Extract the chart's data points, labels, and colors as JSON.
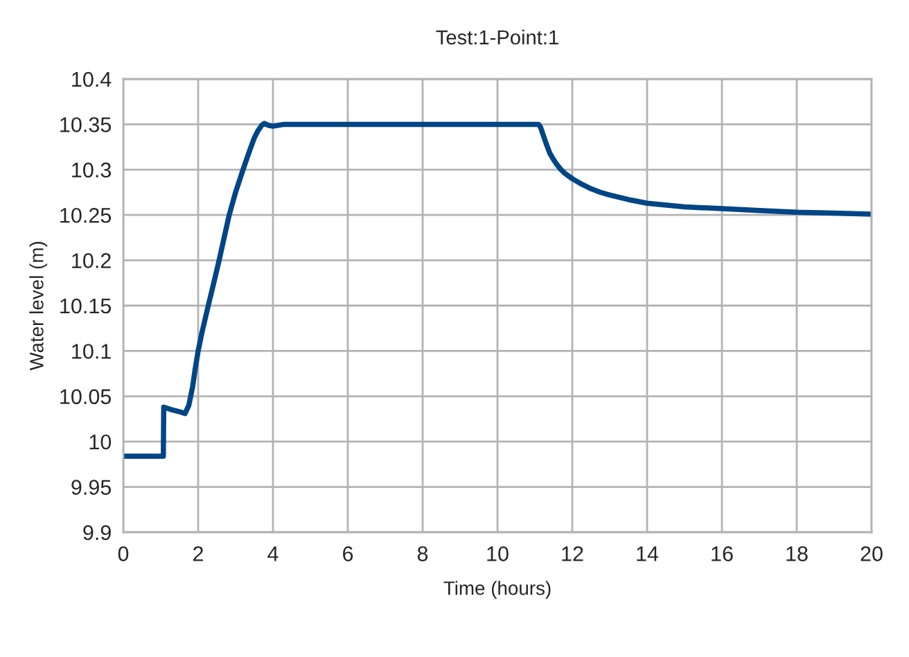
{
  "chart_data": {
    "type": "line",
    "title": "Test:1-Point:1",
    "xlabel": "Time (hours)",
    "ylabel": "Water level (m)",
    "series": [
      {
        "color": "#004586",
        "x": [
          0,
          1.07,
          1.08,
          1.15,
          1.3,
          1.5,
          1.65,
          1.75,
          1.85,
          1.92,
          2.0,
          2.1,
          2.27,
          2.4,
          2.56,
          2.7,
          2.83,
          3.0,
          3.2,
          3.35,
          3.5,
          3.6,
          3.7,
          3.77,
          3.87,
          4.0,
          4.3,
          11.1,
          11.15,
          11.2,
          11.3,
          11.4,
          11.5,
          11.6,
          11.7,
          11.8,
          12.0,
          12.25,
          12.5,
          12.75,
          13.0,
          13.5,
          14.0,
          15.0,
          16.0,
          17.0,
          18.0,
          19.0,
          20.0
        ],
        "values": [
          9.984,
          9.984,
          10.038,
          10.037,
          10.035,
          10.033,
          10.031,
          10.04,
          10.06,
          10.08,
          10.1,
          10.12,
          10.15,
          10.172,
          10.2,
          10.226,
          10.25,
          10.275,
          10.3,
          10.318,
          10.335,
          10.343,
          10.349,
          10.351,
          10.349,
          10.348,
          10.35,
          10.35,
          10.347,
          10.341,
          10.329,
          10.318,
          10.311,
          10.305,
          10.3,
          10.296,
          10.29,
          10.284,
          10.279,
          10.275,
          10.272,
          10.267,
          10.263,
          10.259,
          10.257,
          10.255,
          10.253,
          10.252,
          10.251
        ]
      }
    ],
    "xlim": [
      0,
      20
    ],
    "xticks": [
      0,
      2,
      4,
      6,
      8,
      10,
      12,
      14,
      16,
      18,
      20
    ],
    "ylim": [
      9.9,
      10.4
    ],
    "yticks": [
      9.9,
      9.95,
      10,
      10.05,
      10.1,
      10.15,
      10.2,
      10.25,
      10.3,
      10.35,
      10.4
    ],
    "grid": true,
    "marker": "none",
    "line_style": "solid"
  }
}
